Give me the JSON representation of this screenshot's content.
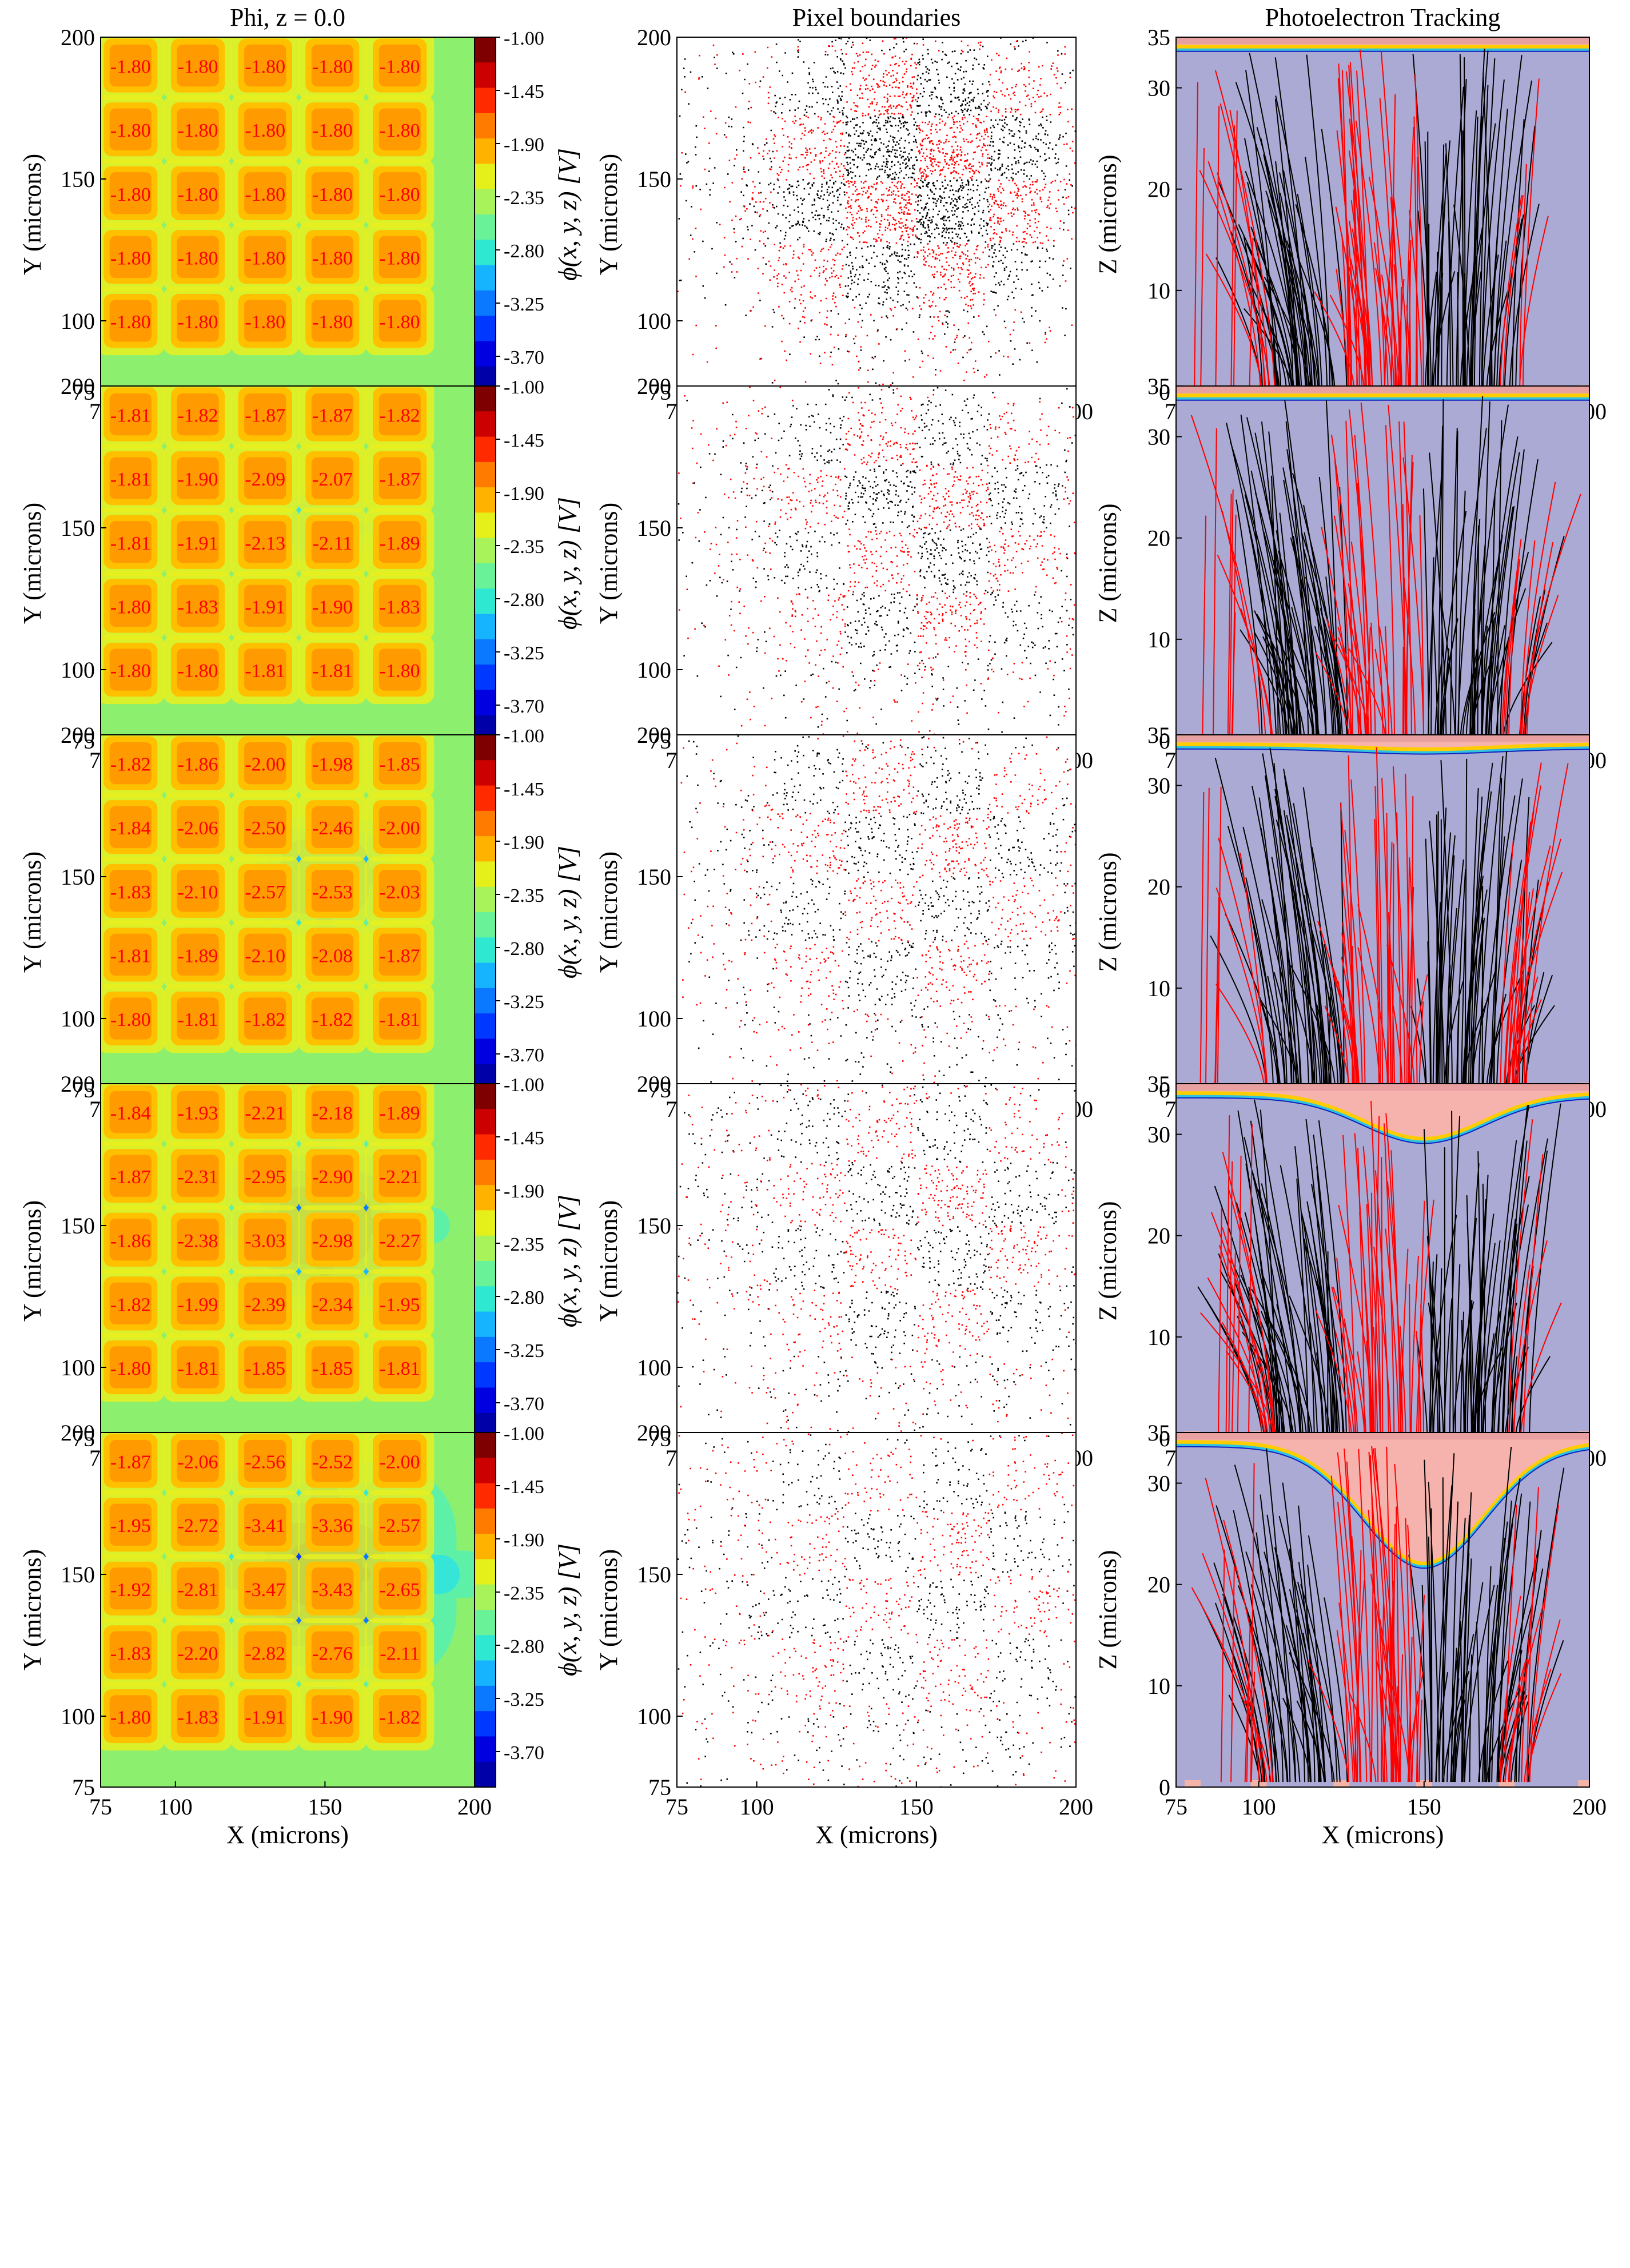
{
  "columns": {
    "potential_title": "Phi, z = 0.0",
    "boundaries_title": "Pixel boundaries",
    "tracking_title": "Photoelectron Tracking"
  },
  "axis_labels": {
    "x": "X (microns)",
    "y": "Y (microns)",
    "z": "Z (microns)"
  },
  "colorbar": {
    "label": "ϕ(x, y, z) [V]",
    "ticks": [
      "-1.00",
      "-1.45",
      "-1.90",
      "-2.35",
      "-2.80",
      "-3.25",
      "-3.70"
    ],
    "range": [
      -4.0,
      -1.0
    ]
  },
  "colors": {
    "red_dots": "#ff0000",
    "black_dots": "#000000",
    "track_background": "#aaaad4",
    "label_red": "#ff0000",
    "lower_band": "#f4b5a8"
  },
  "chart_data": [
    {
      "type": "heatmap",
      "title": "Phi, z = 0.0",
      "xlabel": "X (microns)",
      "ylabel": "Y (microns)",
      "xlim": [
        75,
        200
      ],
      "ylim": [
        75,
        200
      ],
      "xticks": [
        "75",
        "100",
        "150",
        "200"
      ],
      "yticks": [
        "75",
        "100",
        "150",
        "200"
      ],
      "pixel_centers": [
        85,
        107.5,
        130,
        152.5,
        175
      ],
      "rows": [
        {
          "values": [
            "-1.80",
            "-1.80",
            "-1.80",
            "-1.80",
            "-1.80"
          ]
        },
        {
          "values": [
            "-1.80",
            "-1.80",
            "-1.80",
            "-1.80",
            "-1.80"
          ]
        },
        {
          "values": [
            "-1.80",
            "-1.80",
            "-1.80",
            "-1.80",
            "-1.80"
          ]
        },
        {
          "values": [
            "-1.80",
            "-1.80",
            "-1.80",
            "-1.80",
            "-1.80"
          ]
        },
        {
          "values": [
            "-1.80",
            "-1.80",
            "-1.80",
            "-1.80",
            "-1.80"
          ]
        }
      ],
      "blob_depth": 0
    },
    {
      "type": "heatmap",
      "title": "Phi, z = 0.0",
      "xlabel": "X (microns)",
      "ylabel": "Y (microns)",
      "xlim": [
        75,
        200
      ],
      "ylim": [
        75,
        200
      ],
      "xticks": [
        "75",
        "100",
        "150",
        "200"
      ],
      "yticks": [
        "75",
        "100",
        "150",
        "200"
      ],
      "pixel_centers": [
        85,
        107.5,
        130,
        152.5,
        175
      ],
      "rows": [
        {
          "values": [
            "-1.81",
            "-1.82",
            "-1.87",
            "-1.87",
            "-1.82"
          ]
        },
        {
          "values": [
            "-1.81",
            "-1.90",
            "-2.09",
            "-2.07",
            "-1.87"
          ]
        },
        {
          "values": [
            "-1.81",
            "-1.91",
            "-2.13",
            "-2.11",
            "-1.89"
          ]
        },
        {
          "values": [
            "-1.80",
            "-1.83",
            "-1.91",
            "-1.90",
            "-1.83"
          ]
        },
        {
          "values": [
            "-1.80",
            "-1.80",
            "-1.81",
            "-1.81",
            "-1.80"
          ]
        }
      ],
      "blob_depth": 1
    },
    {
      "type": "heatmap",
      "title": "Phi, z = 0.0",
      "xlabel": "X (microns)",
      "ylabel": "Y (microns)",
      "xlim": [
        75,
        200
      ],
      "ylim": [
        75,
        200
      ],
      "xticks": [
        "75",
        "100",
        "150",
        "200"
      ],
      "yticks": [
        "75",
        "100",
        "150",
        "200"
      ],
      "pixel_centers": [
        85,
        107.5,
        130,
        152.5,
        175
      ],
      "rows": [
        {
          "values": [
            "-1.82",
            "-1.86",
            "-2.00",
            "-1.98",
            "-1.85"
          ]
        },
        {
          "values": [
            "-1.84",
            "-2.06",
            "-2.50",
            "-2.46",
            "-2.00"
          ]
        },
        {
          "values": [
            "-1.83",
            "-2.10",
            "-2.57",
            "-2.53",
            "-2.03"
          ]
        },
        {
          "values": [
            "-1.81",
            "-1.89",
            "-2.10",
            "-2.08",
            "-1.87"
          ]
        },
        {
          "values": [
            "-1.80",
            "-1.81",
            "-1.82",
            "-1.82",
            "-1.81"
          ]
        }
      ],
      "blob_depth": 2
    },
    {
      "type": "heatmap",
      "title": "Phi, z = 0.0",
      "xlabel": "X (microns)",
      "ylabel": "Y (microns)",
      "xlim": [
        75,
        200
      ],
      "ylim": [
        75,
        200
      ],
      "xticks": [
        "75",
        "100",
        "150",
        "200"
      ],
      "yticks": [
        "75",
        "100",
        "150",
        "200"
      ],
      "pixel_centers": [
        85,
        107.5,
        130,
        152.5,
        175
      ],
      "rows": [
        {
          "values": [
            "-1.84",
            "-1.93",
            "-2.21",
            "-2.18",
            "-1.89"
          ]
        },
        {
          "values": [
            "-1.87",
            "-2.31",
            "-2.95",
            "-2.90",
            "-2.21"
          ]
        },
        {
          "values": [
            "-1.86",
            "-2.38",
            "-3.03",
            "-2.98",
            "-2.27"
          ]
        },
        {
          "values": [
            "-1.82",
            "-1.99",
            "-2.39",
            "-2.34",
            "-1.95"
          ]
        },
        {
          "values": [
            "-1.80",
            "-1.81",
            "-1.85",
            "-1.85",
            "-1.81"
          ]
        }
      ],
      "blob_depth": 3
    },
    {
      "type": "heatmap",
      "title": "Phi, z = 0.0",
      "xlabel": "X (microns)",
      "ylabel": "Y (microns)",
      "xlim": [
        75,
        200
      ],
      "ylim": [
        75,
        200
      ],
      "xticks": [
        "75",
        "100",
        "150",
        "200"
      ],
      "yticks": [
        "75",
        "100",
        "150",
        "200"
      ],
      "pixel_centers": [
        85,
        107.5,
        130,
        152.5,
        175
      ],
      "rows": [
        {
          "values": [
            "-1.87",
            "-2.06",
            "-2.56",
            "-2.52",
            "-2.00"
          ]
        },
        {
          "values": [
            "-1.95",
            "-2.72",
            "-3.41",
            "-3.36",
            "-2.57"
          ]
        },
        {
          "values": [
            "-1.92",
            "-2.81",
            "-3.47",
            "-3.43",
            "-2.65"
          ]
        },
        {
          "values": [
            "-1.83",
            "-2.20",
            "-2.82",
            "-2.76",
            "-2.11"
          ]
        },
        {
          "values": [
            "-1.80",
            "-1.83",
            "-1.91",
            "-1.90",
            "-1.82"
          ]
        }
      ],
      "blob_depth": 4
    },
    {
      "type": "scatter",
      "title": "Pixel boundaries",
      "xlabel": "X (microns)",
      "ylabel": "Y (microns)",
      "xlim": [
        75,
        200
      ],
      "ylim": [
        75,
        200
      ],
      "xticks": [
        "75",
        "100",
        "150",
        "200"
      ],
      "yticks": [
        "75",
        "100",
        "150",
        "200"
      ],
      "checker_edges": [
        105,
        127,
        150,
        172,
        195
      ],
      "series": [
        "red",
        "black"
      ],
      "note": "5 stacked boundary panels, spread increasing downward",
      "spread": [
        1.0,
        1.15,
        1.3,
        1.45,
        1.6
      ]
    },
    {
      "type": "line",
      "title": "Photoelectron Tracking",
      "xlabel": "X (microns)",
      "ylabel": "Z (microns)",
      "xlim": [
        75,
        200
      ],
      "ylim": [
        0,
        35
      ],
      "xticks": [
        "75",
        "100",
        "150",
        "200"
      ],
      "yticks": [
        "0",
        "10",
        "20",
        "30",
        "35"
      ],
      "series": [
        "red",
        "black"
      ],
      "depletion_dip_z": [
        34,
        34,
        33.5,
        29.5,
        22
      ]
    }
  ]
}
